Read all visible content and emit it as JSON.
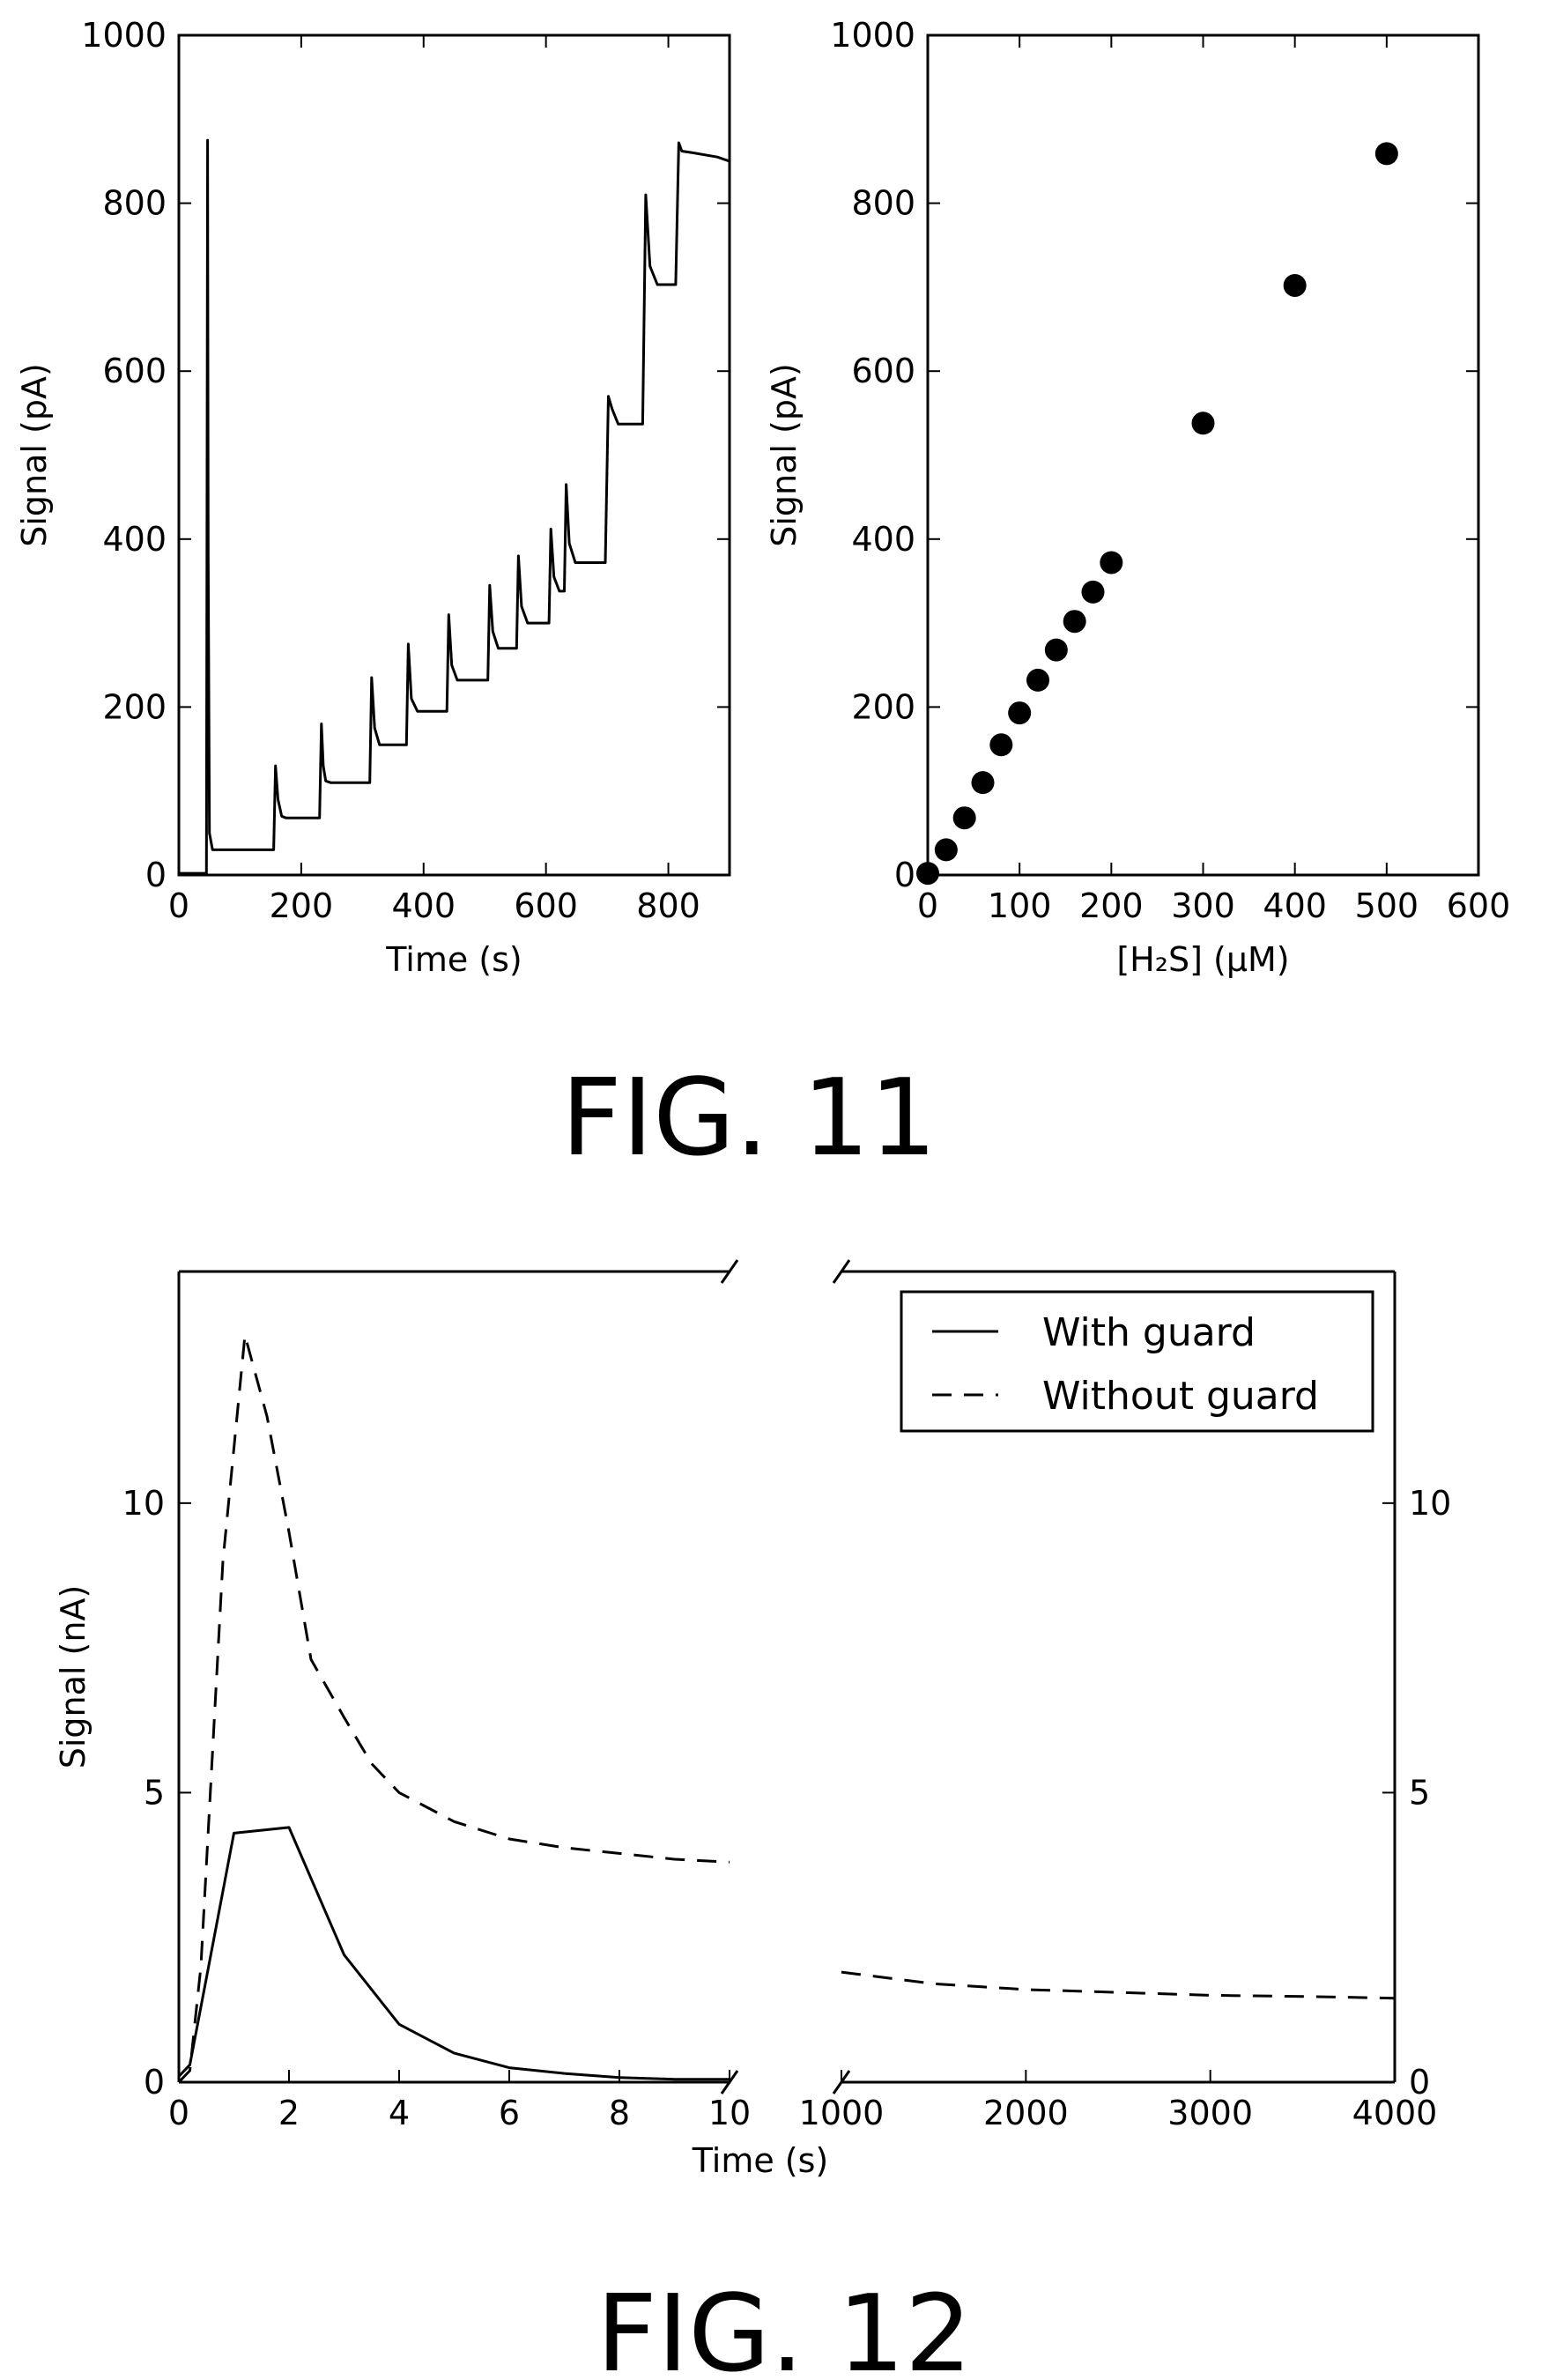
{
  "figures": [
    {
      "caption": "FIG. 11"
    },
    {
      "caption": "FIG. 12"
    }
  ],
  "chart_data": [
    {
      "type": "line",
      "xlabel": "Time (s)",
      "ylabel": "Signal (pA)",
      "xlim": [
        0,
        900
      ],
      "ylim": [
        0,
        1000
      ],
      "xticks": [
        0,
        200,
        400,
        600,
        800
      ],
      "yticks": [
        0,
        200,
        400,
        600,
        800,
        1000
      ],
      "grid": false,
      "series": [
        {
          "x": [
            0,
            45,
            47,
            48,
            50,
            55,
            80,
            155,
            158,
            162,
            168,
            175,
            230,
            233,
            236,
            240,
            248,
            312,
            315,
            320,
            328,
            372,
            375,
            380,
            390,
            438,
            441,
            446,
            455,
            505,
            508,
            513,
            522,
            552,
            555,
            560,
            570,
            605,
            608,
            613,
            622,
            630,
            633,
            638,
            648,
            697,
            702,
            708,
            718,
            758,
            763,
            770,
            782,
            812,
            817,
            822,
            840,
            880,
            900
          ],
          "y": [
            2,
            2,
            875,
            380,
            50,
            30,
            30,
            30,
            130,
            90,
            70,
            68,
            68,
            180,
            130,
            112,
            110,
            110,
            235,
            175,
            155,
            155,
            275,
            210,
            195,
            195,
            310,
            250,
            232,
            232,
            345,
            290,
            270,
            270,
            380,
            320,
            300,
            300,
            412,
            355,
            338,
            338,
            465,
            395,
            372,
            372,
            570,
            555,
            537,
            537,
            810,
            725,
            703,
            703,
            872,
            862,
            860,
            855,
            850
          ]
        }
      ]
    },
    {
      "type": "scatter",
      "xlabel": "[H₂S] (µM)",
      "ylabel": "Signal (pA)",
      "xlim": [
        0,
        600
      ],
      "ylim": [
        0,
        1000
      ],
      "xticks": [
        0,
        100,
        200,
        300,
        400,
        500,
        600
      ],
      "yticks": [
        0,
        200,
        400,
        600,
        800,
        1000
      ],
      "grid": false,
      "series": [
        {
          "x": [
            0,
            20,
            40,
            60,
            80,
            100,
            120,
            140,
            160,
            180,
            200,
            300,
            400,
            500
          ],
          "y": [
            2,
            30,
            68,
            110,
            155,
            193,
            232,
            268,
            302,
            337,
            372,
            538,
            702,
            859
          ]
        }
      ]
    },
    {
      "type": "line",
      "xlabel": "Time (s)",
      "ylabel": "Signal (nA)",
      "broken_x_axis": true,
      "segments": [
        {
          "xlim": [
            0,
            10
          ],
          "xticks": [
            0,
            2,
            4,
            6,
            8,
            10
          ]
        },
        {
          "xlim": [
            1000,
            4000
          ],
          "xticks": [
            1000,
            2000,
            3000,
            4000
          ]
        }
      ],
      "ylim": [
        0,
        14
      ],
      "yticks": [
        0,
        5,
        10
      ],
      "legend_position": "top-right",
      "grid": false,
      "series": [
        {
          "name": "With guard",
          "style": "solid",
          "x": [
            0,
            0.2,
            0.5,
            1,
            2,
            3,
            4,
            5,
            6,
            7,
            8,
            9,
            10
          ],
          "y": [
            0.1,
            0.3,
            1.8,
            4.3,
            4.4,
            2.2,
            1.0,
            0.5,
            0.25,
            0.15,
            0.08,
            0.05,
            0.05
          ]
        },
        {
          "name": "Without guard",
          "style": "dashed",
          "x": [
            0,
            0.2,
            0.4,
            0.8,
            1.2,
            1.6,
            2.0,
            2.4,
            3.0,
            3.5,
            4.0,
            5.0,
            6.0,
            7.0,
            8.0,
            9.0,
            10.0,
            1000,
            1500,
            2000,
            2500,
            3000,
            3500,
            4000
          ],
          "y": [
            0,
            0.2,
            2.0,
            9.0,
            12.9,
            11.5,
            9.5,
            7.3,
            6.3,
            5.5,
            5.0,
            4.5,
            4.2,
            4.05,
            3.95,
            3.85,
            3.8,
            1.9,
            1.7,
            1.6,
            1.55,
            1.5,
            1.48,
            1.45
          ]
        }
      ]
    }
  ]
}
